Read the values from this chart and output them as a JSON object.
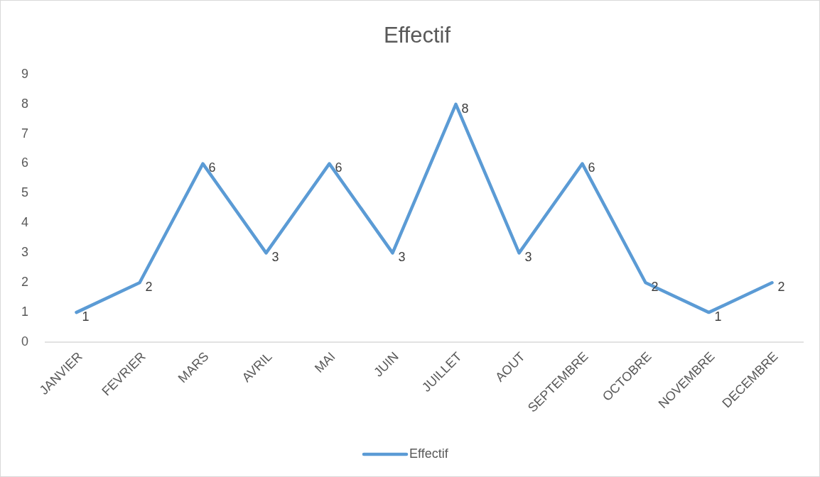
{
  "chart_data": {
    "type": "line",
    "title": "Effectif",
    "categories": [
      "JANVIER",
      "FEVRIER",
      "MARS",
      "AVRIL",
      "MAI",
      "JUIN",
      "JUILLET",
      "AOUT",
      "SEPTEMBRE",
      "OCTOBRE",
      "NOVEMBRE",
      "DECEMBRE"
    ],
    "series": [
      {
        "name": "Effectif",
        "color": "#5b9bd5",
        "values": [
          1,
          2,
          6,
          3,
          6,
          3,
          8,
          3,
          6,
          2,
          1,
          2
        ]
      }
    ],
    "ylim": [
      0,
      9
    ],
    "yticks": [
      0,
      1,
      2,
      3,
      4,
      5,
      6,
      7,
      8,
      9
    ],
    "data_labels": true,
    "legend": "bottom",
    "marker": "none",
    "line_style": "solid",
    "grid": false
  }
}
